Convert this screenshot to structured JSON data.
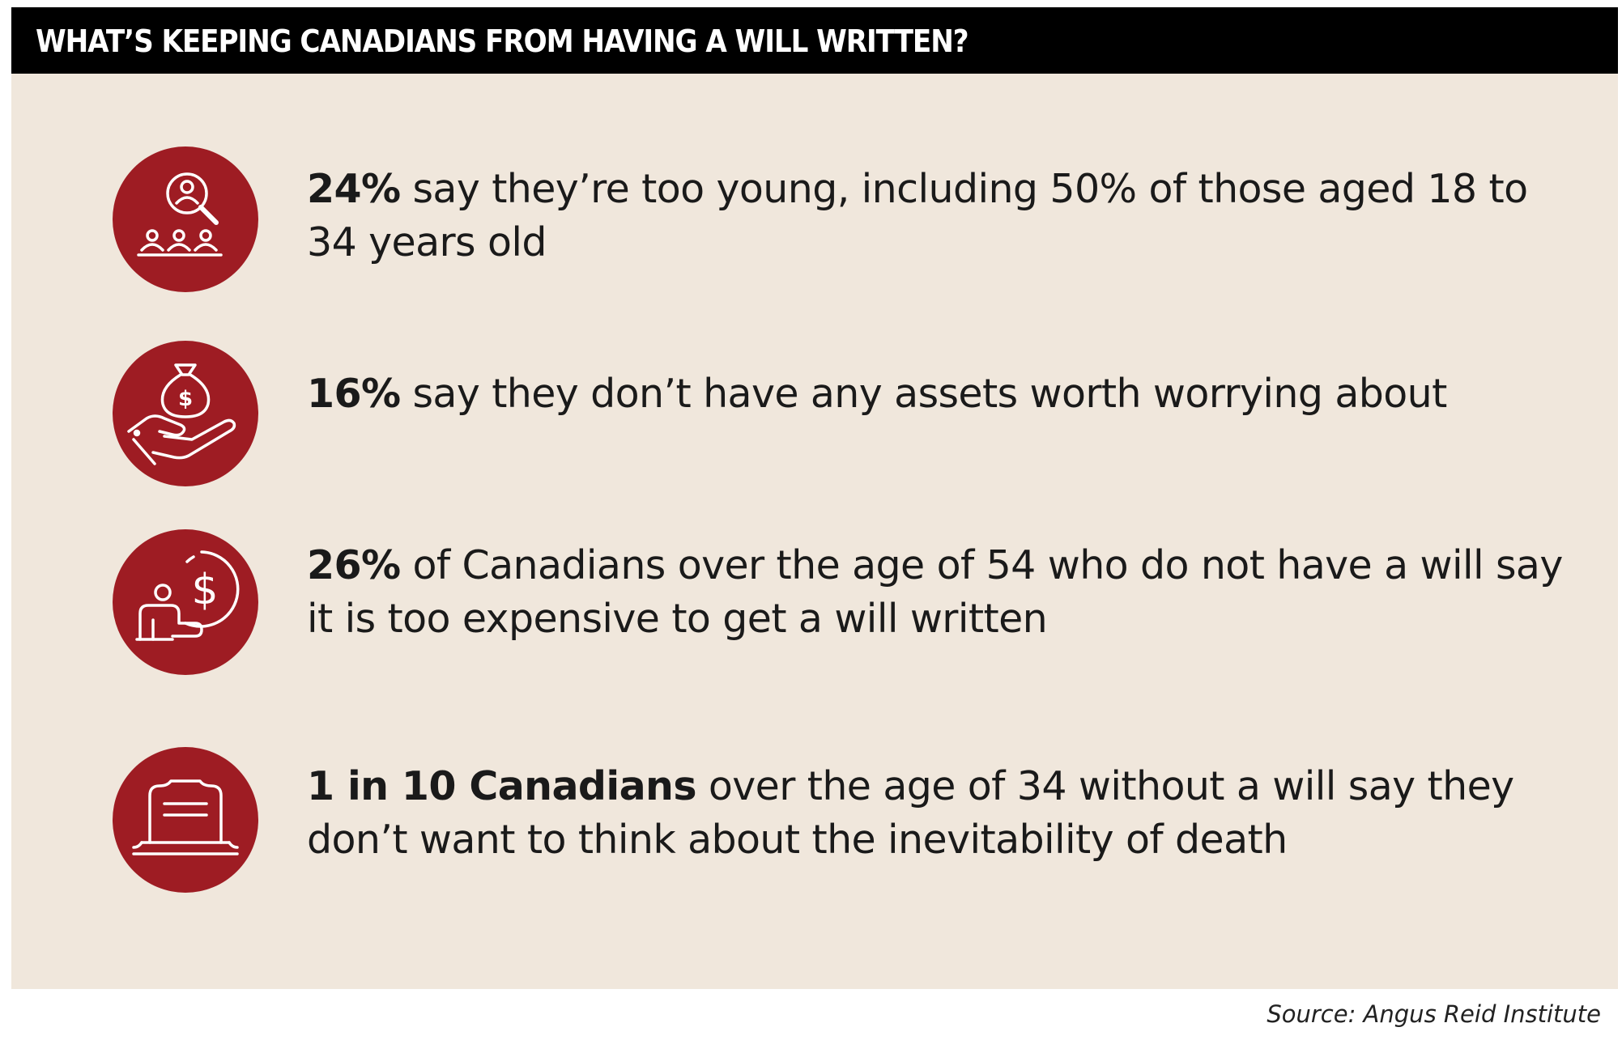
{
  "title": "WHAT’S KEEPING CANADIANS FROM HAVING A WILL WRITTEN?",
  "items": [
    {
      "icon": "people-search-icon",
      "lead": "24%",
      "rest": " say they’re too young, including 50% of those aged 18 to 34 years old"
    },
    {
      "icon": "hand-money-bag-icon",
      "lead": "16%",
      "rest": " say they don’t have any assets worth worrying about"
    },
    {
      "icon": "person-dollar-icon",
      "lead": "26%",
      "rest": " of Canadians over the age of 54 who do not have a will say it is too expensive to get a will written"
    },
    {
      "icon": "tombstone-icon",
      "lead": "1 in 10 Canadians",
      "rest": " over the age of 34 without a will say they don’t want to think about the inevitability of death"
    }
  ],
  "source": "Source: Angus Reid Institute",
  "colors": {
    "header_bg": "#000000",
    "panel_bg": "#f0e7dc",
    "icon_bg": "#9e1c23",
    "text": "#1a1a1a"
  }
}
